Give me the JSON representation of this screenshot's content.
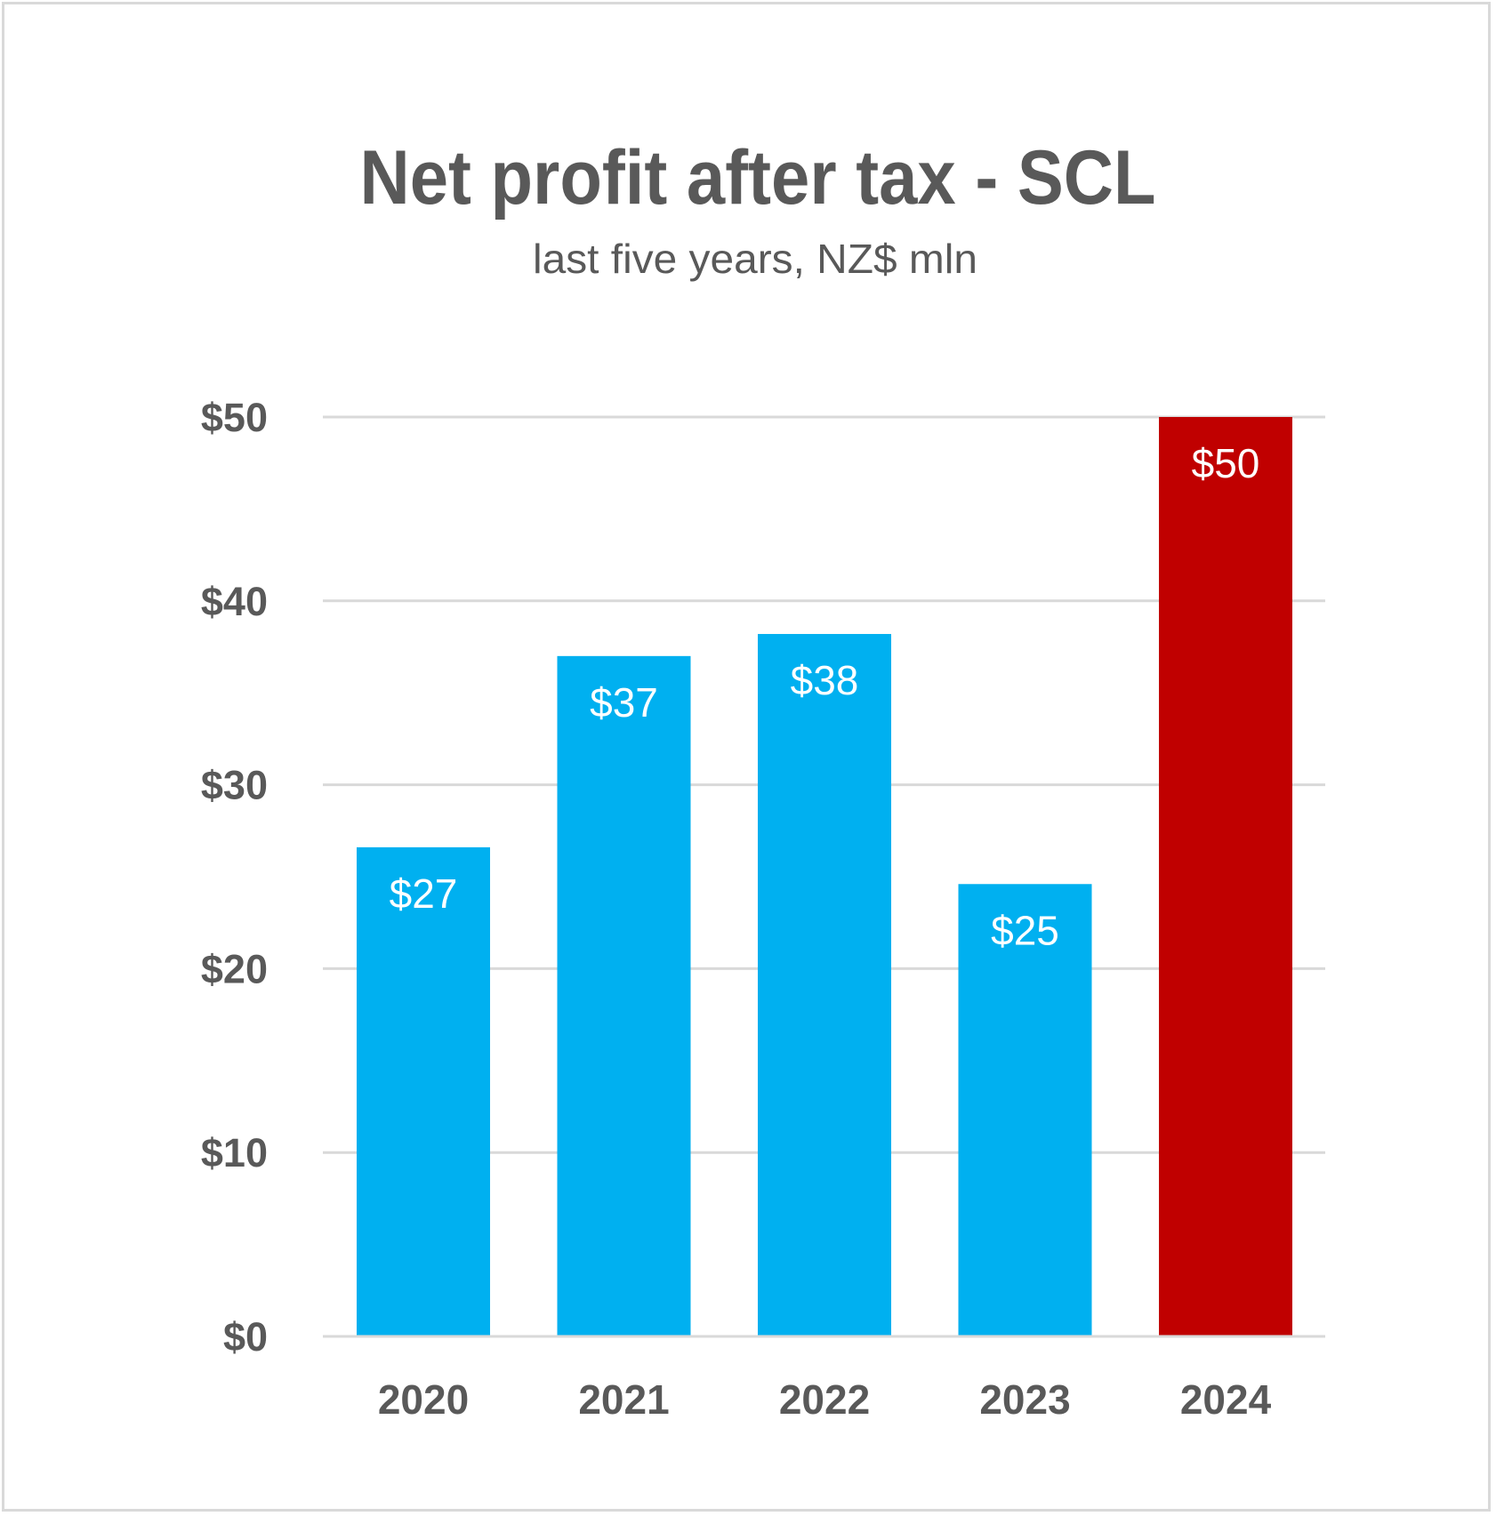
{
  "chart_data": {
    "type": "bar",
    "title": "Net profit after tax - SCL",
    "subtitle": "last five years, NZ$ mln",
    "xlabel": "",
    "ylabel": "",
    "categories": [
      "2020",
      "2021",
      "2022",
      "2023",
      "2024"
    ],
    "values": [
      26.6,
      37.0,
      38.2,
      24.6,
      50.0
    ],
    "data_labels": [
      "$27",
      "$37",
      "$38",
      "$25",
      "$50"
    ],
    "bar_colors": [
      "#00b0f0",
      "#00b0f0",
      "#00b0f0",
      "#00b0f0",
      "#c00000"
    ],
    "ylim": [
      0,
      50
    ],
    "yticks": [
      0,
      10,
      20,
      30,
      40,
      50
    ],
    "ytick_labels": [
      "$0",
      "$10",
      "$20",
      "$30",
      "$40",
      "$50"
    ],
    "grid": true,
    "legend": "none"
  },
  "colors": {
    "text": "#595959",
    "gridline": "#d9d9d9",
    "highlight": "#c00000",
    "primary": "#00b0f0"
  }
}
